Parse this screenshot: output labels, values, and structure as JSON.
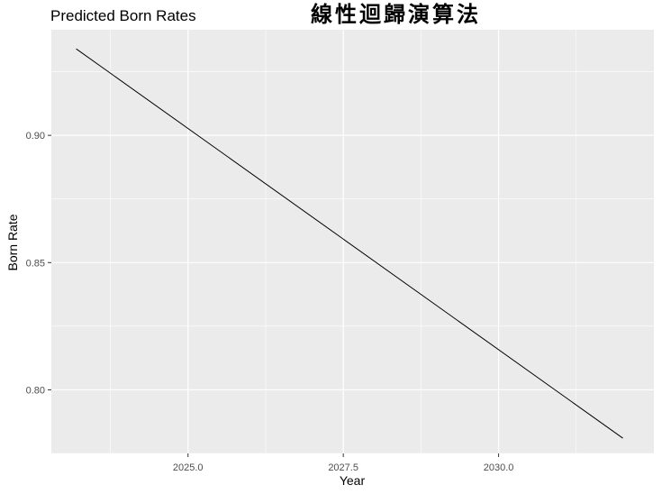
{
  "overlay_title": "線性迴歸演算法",
  "chart_data": {
    "type": "line",
    "title": "Predicted Born Rates",
    "xlabel": "Year",
    "ylabel": "Born Rate",
    "xlim": [
      2022.8,
      2032.5
    ],
    "ylim": [
      0.775,
      0.9415
    ],
    "x_ticks": [
      2025.0,
      2027.5,
      2030.0
    ],
    "x_tick_labels": [
      "2025.0",
      "2027.5",
      "2030.0"
    ],
    "x_minor_ticks": [
      2023.75,
      2026.25,
      2028.75,
      2031.25
    ],
    "y_ticks": [
      0.8,
      0.85,
      0.9
    ],
    "y_tick_labels": [
      "0.80",
      "0.85",
      "0.90"
    ],
    "y_minor_ticks": [
      0.775,
      0.825,
      0.875,
      0.925
    ],
    "grid": true,
    "series": [
      {
        "color": "#000000",
        "x": [
          2023.2,
          2032.0
        ],
        "y": [
          0.934,
          0.781
        ]
      }
    ],
    "colors": {
      "panel": "#ebebeb",
      "grid": "#ffffff",
      "tick": "#4d4d4d"
    }
  }
}
